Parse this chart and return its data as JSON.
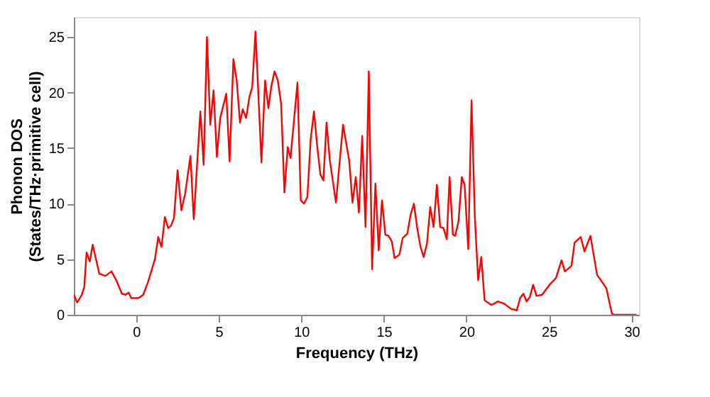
{
  "chart_data": {
    "type": "line",
    "xlabel": "Frequency (THz)",
    "ylabel": "Phonon DOS\n(States/THz·primitive cell)",
    "xlim": [
      -3.77,
      30.45
    ],
    "ylim": [
      0,
      26.8
    ],
    "xticks": [
      0,
      5,
      10,
      15,
      20,
      25,
      30
    ],
    "yticks": [
      0,
      5,
      10,
      15,
      20,
      25
    ],
    "grid": false,
    "legend": false,
    "marker": "none",
    "line_style": "solid",
    "x": [
      -3.77,
      -3.57,
      -3.29,
      -3.14,
      -3.0,
      -2.8,
      -2.63,
      -2.23,
      -1.86,
      -1.49,
      -1.2,
      -0.86,
      -0.63,
      -0.46,
      -0.29,
      0.14,
      0.43,
      0.71,
      1.14,
      1.34,
      1.54,
      1.74,
      1.94,
      2.11,
      2.29,
      2.51,
      2.74,
      2.97,
      3.29,
      3.49,
      3.89,
      4.09,
      4.29,
      4.49,
      4.69,
      4.89,
      5.09,
      5.46,
      5.66,
      5.89,
      6.09,
      6.29,
      6.46,
      6.66,
      6.86,
      7.03,
      7.23,
      7.59,
      7.81,
      8.01,
      8.18,
      8.38,
      8.58,
      8.78,
      8.98,
      9.18,
      9.35,
      9.77,
      9.97,
      10.17,
      10.37,
      10.57,
      10.77,
      10.97,
      11.16,
      11.34,
      11.53,
      11.73,
      12.1,
      12.53,
      12.9,
      13.1,
      13.3,
      13.49,
      13.69,
      13.89,
      14.09,
      14.29,
      14.49,
      14.69,
      14.89,
      15.09,
      15.28,
      15.48,
      15.65,
      15.94,
      16.14,
      16.42,
      16.62,
      16.82,
      17.02,
      17.22,
      17.41,
      17.61,
      17.81,
      18.01,
      18.21,
      18.41,
      18.61,
      18.81,
      18.98,
      19.18,
      19.32,
      19.52,
      19.72,
      19.89,
      20.11,
      20.31,
      20.51,
      20.71,
      20.9,
      21.1,
      21.5,
      21.69,
      21.89,
      22.29,
      22.68,
      23.05,
      23.25,
      23.45,
      23.64,
      23.84,
      24.04,
      24.24,
      24.58,
      25.03,
      25.42,
      25.76,
      25.96,
      26.36,
      26.55,
      26.92,
      27.15,
      27.51,
      27.91,
      28.47,
      28.81,
      28.95,
      30.3
    ],
    "series": [
      {
        "color": "#ff0000",
        "values": [
          1.8,
          1.1,
          1.8,
          2.5,
          5.6,
          4.8,
          6.3,
          3.7,
          3.5,
          3.9,
          3.1,
          1.9,
          1.8,
          2.0,
          1.5,
          1.5,
          1.8,
          2.9,
          5.0,
          7.0,
          6.1,
          8.8,
          7.8,
          8.0,
          8.7,
          13.0,
          9.4,
          10.9,
          14.3,
          8.6,
          18.3,
          13.5,
          25.0,
          17.1,
          20.2,
          14.2,
          17.7,
          19.9,
          13.8,
          23.0,
          21.1,
          17.3,
          18.5,
          17.7,
          19.6,
          20.5,
          25.5,
          13.7,
          21.1,
          18.6,
          20.5,
          21.9,
          21.1,
          19.0,
          11.0,
          15.1,
          14.1,
          20.9,
          10.3,
          10.0,
          10.6,
          15.8,
          18.3,
          15.1,
          12.6,
          12.1,
          17.3,
          13.9,
          10.1,
          17.1,
          13.9,
          10.1,
          12.4,
          9.2,
          16.1,
          7.9,
          21.9,
          4.1,
          11.8,
          5.8,
          10.3,
          7.2,
          7.1,
          6.6,
          5.1,
          5.4,
          6.9,
          7.3,
          9.0,
          10.0,
          7.8,
          6.1,
          5.2,
          6.4,
          9.7,
          7.9,
          11.7,
          7.9,
          7.8,
          6.8,
          12.4,
          7.2,
          7.1,
          8.4,
          12.4,
          11.7,
          5.9,
          19.3,
          8.8,
          3.1,
          5.2,
          1.3,
          0.9,
          1.0,
          1.2,
          1.0,
          0.55,
          0.4,
          1.5,
          1.9,
          1.2,
          1.6,
          2.7,
          1.7,
          1.8,
          2.7,
          3.3,
          4.9,
          3.9,
          4.4,
          6.5,
          7.0,
          5.7,
          7.1,
          3.6,
          2.4,
          0.1,
          0,
          0
        ]
      }
    ]
  }
}
